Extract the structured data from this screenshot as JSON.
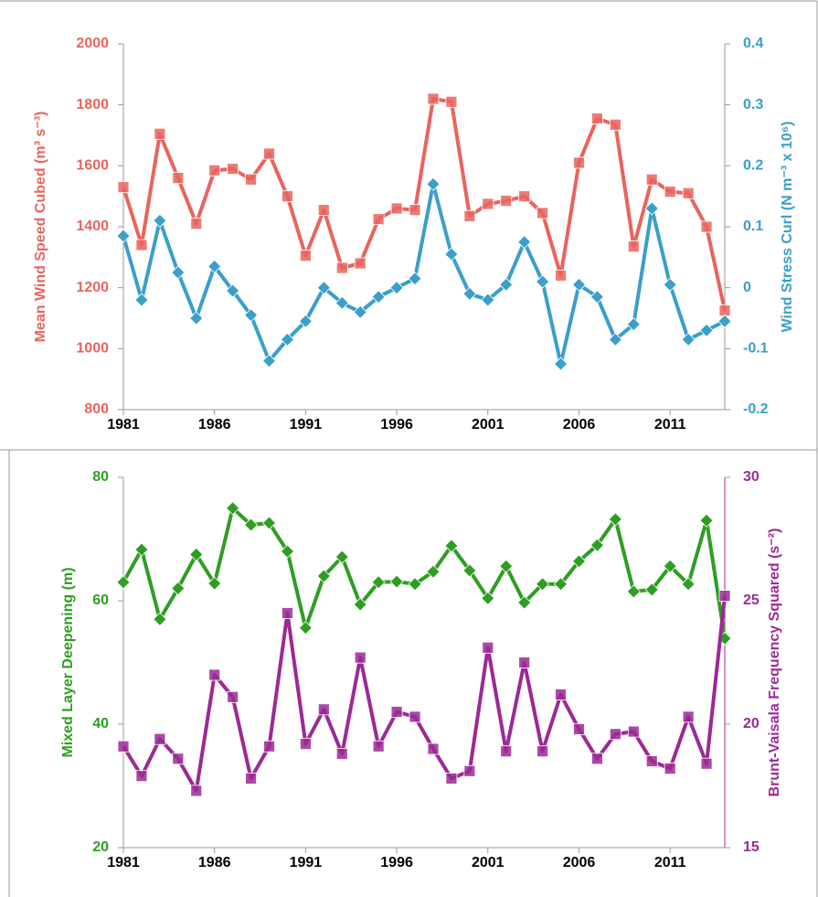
{
  "chart_data": [
    {
      "type": "line",
      "ylabel": "Mean Wind Speed Cubed (m³ s⁻³)",
      "y2label": "Wind Stress Curl (N m⁻³ x 10⁶)",
      "x": [
        1981,
        1982,
        1983,
        1984,
        1985,
        1986,
        1987,
        1988,
        1989,
        1990,
        1991,
        1992,
        1993,
        1994,
        1995,
        1996,
        1997,
        1998,
        1999,
        2000,
        2001,
        2002,
        2003,
        2004,
        2005,
        2006,
        2007,
        2008,
        2009,
        2010,
        2011,
        2012,
        2013,
        2014
      ],
      "xlim": [
        1981,
        2014
      ],
      "xticks": [
        1981,
        1986,
        1991,
        1996,
        2001,
        2006,
        2011
      ],
      "ylim": [
        800,
        2000
      ],
      "yticks": [
        800,
        1000,
        1200,
        1400,
        1600,
        1800,
        2000
      ],
      "y2lim": [
        -0.2,
        0.4
      ],
      "y2ticks": [
        -0.2,
        -0.1,
        0,
        0.1,
        0.2,
        0.3,
        0.4
      ],
      "series": [
        {
          "name": "Mean Wind Speed Cubed",
          "color": "#e8645e",
          "marker": "square",
          "axis": "y",
          "values": [
            1530,
            1340,
            1705,
            1560,
            1410,
            1585,
            1590,
            1555,
            1640,
            1500,
            1305,
            1455,
            1265,
            1280,
            1425,
            1460,
            1455,
            1820,
            1810,
            1435,
            1475,
            1485,
            1500,
            1445,
            1240,
            1610,
            1755,
            1735,
            1335,
            1555,
            1515,
            1510,
            1400,
            1125
          ]
        },
        {
          "name": "Wind Stress Curl",
          "color": "#3a9fc9",
          "marker": "diamond",
          "axis": "y2",
          "values": [
            0.085,
            -0.02,
            0.11,
            0.025,
            -0.05,
            0.035,
            -0.005,
            -0.045,
            -0.12,
            -0.085,
            -0.055,
            0,
            -0.025,
            -0.04,
            -0.015,
            0,
            0.015,
            0.17,
            0.055,
            -0.01,
            -0.02,
            0.005,
            0.075,
            0.01,
            -0.125,
            0.005,
            -0.015,
            -0.085,
            -0.06,
            0.13,
            0.005,
            -0.085,
            -0.07,
            -0.055
          ]
        }
      ]
    },
    {
      "type": "line",
      "ylabel": "Mixed Layer Deepening (m)",
      "y2label": "Brunt-Vaisala Frequency Squared  (s⁻²)",
      "x": [
        1981,
        1982,
        1983,
        1984,
        1985,
        1986,
        1987,
        1988,
        1989,
        1990,
        1991,
        1992,
        1993,
        1994,
        1995,
        1996,
        1997,
        1998,
        1999,
        2000,
        2001,
        2002,
        2003,
        2004,
        2005,
        2006,
        2007,
        2008,
        2009,
        2010,
        2011,
        2012,
        2013,
        2014
      ],
      "xlim": [
        1981,
        2014
      ],
      "xticks": [
        1981,
        1986,
        1991,
        1996,
        2001,
        2006,
        2011
      ],
      "ylim": [
        20,
        80
      ],
      "yticks": [
        20,
        40,
        60,
        80
      ],
      "y2lim": [
        15,
        30
      ],
      "y2ticks": [
        15,
        20,
        25,
        30
      ],
      "series": [
        {
          "name": "Mixed Layer Deepening",
          "color": "#2e9e22",
          "marker": "diamond",
          "axis": "y",
          "values": [
            63,
            68.3,
            57,
            62,
            67.5,
            62.8,
            75,
            72.3,
            72.6,
            68,
            55.6,
            64,
            67.1,
            59.4,
            63,
            63.1,
            62.7,
            64.7,
            68.9,
            64.9,
            60.4,
            65.6,
            59.7,
            62.7,
            62.7,
            66.4,
            69,
            73.2,
            61.5,
            61.8,
            65.6,
            62.7,
            73,
            53.9
          ]
        },
        {
          "name": "Brunt-Vaisala Frequency Squared",
          "color": "#9b2a94",
          "marker": "square",
          "axis": "y2",
          "values": [
            19.1,
            17.9,
            19.4,
            18.6,
            17.3,
            22,
            21.1,
            17.8,
            19.1,
            24.5,
            19.2,
            20.6,
            18.8,
            22.7,
            19.1,
            20.5,
            20.3,
            19,
            17.8,
            18.1,
            23.1,
            18.9,
            22.5,
            18.9,
            21.2,
            19.8,
            18.6,
            19.6,
            19.7,
            18.5,
            18.2,
            20.3,
            18.4,
            25.2
          ]
        }
      ]
    }
  ]
}
